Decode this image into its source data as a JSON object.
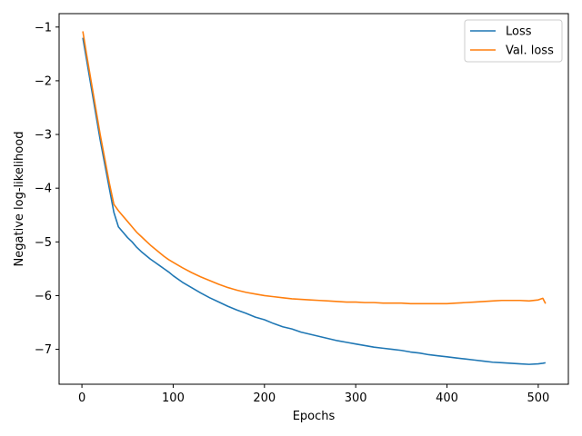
{
  "chart_data": {
    "type": "line",
    "title": "",
    "xlabel": "Epochs",
    "ylabel": "Negative log-likelihood",
    "xlim": [
      -25,
      533
    ],
    "ylim": [
      -7.65,
      -0.75
    ],
    "xticks": [
      0,
      100,
      200,
      300,
      400,
      500
    ],
    "yticks": [
      -1,
      -2,
      -3,
      -4,
      -5,
      -6,
      -7
    ],
    "grid": false,
    "legend": "top-right",
    "series": [
      {
        "name": "Loss",
        "color": "#1f77b4",
        "x": [
          1,
          5,
          10,
          15,
          20,
          25,
          30,
          35,
          40,
          45,
          50,
          55,
          60,
          65,
          70,
          75,
          80,
          85,
          90,
          95,
          100,
          110,
          120,
          130,
          140,
          150,
          160,
          170,
          180,
          190,
          200,
          210,
          220,
          230,
          240,
          250,
          260,
          270,
          280,
          290,
          300,
          310,
          320,
          330,
          340,
          350,
          360,
          370,
          380,
          390,
          400,
          410,
          420,
          430,
          440,
          450,
          460,
          470,
          480,
          490,
          500,
          505,
          508
        ],
        "values": [
          -1.2,
          -1.6,
          -2.1,
          -2.6,
          -3.1,
          -3.55,
          -4.0,
          -4.45,
          -4.72,
          -4.82,
          -4.92,
          -5.0,
          -5.1,
          -5.18,
          -5.25,
          -5.32,
          -5.38,
          -5.44,
          -5.5,
          -5.56,
          -5.63,
          -5.75,
          -5.85,
          -5.95,
          -6.04,
          -6.12,
          -6.2,
          -6.27,
          -6.33,
          -6.4,
          -6.45,
          -6.52,
          -6.58,
          -6.62,
          -6.68,
          -6.72,
          -6.76,
          -6.8,
          -6.84,
          -6.87,
          -6.9,
          -6.93,
          -6.96,
          -6.98,
          -7.0,
          -7.02,
          -7.05,
          -7.07,
          -7.1,
          -7.12,
          -7.14,
          -7.16,
          -7.18,
          -7.2,
          -7.22,
          -7.24,
          -7.25,
          -7.26,
          -7.27,
          -7.28,
          -7.27,
          -7.26,
          -7.25
        ]
      },
      {
        "name": "Val. loss",
        "color": "#ff7f0e",
        "x": [
          1,
          5,
          10,
          15,
          20,
          25,
          30,
          35,
          40,
          45,
          50,
          55,
          60,
          65,
          70,
          75,
          80,
          85,
          90,
          95,
          100,
          110,
          120,
          130,
          140,
          150,
          160,
          170,
          180,
          190,
          200,
          210,
          220,
          230,
          240,
          250,
          260,
          270,
          280,
          290,
          300,
          310,
          320,
          330,
          340,
          350,
          360,
          370,
          380,
          390,
          400,
          410,
          420,
          430,
          440,
          450,
          460,
          470,
          480,
          490,
          500,
          505,
          508
        ],
        "values": [
          -1.08,
          -1.5,
          -2.0,
          -2.5,
          -3.0,
          -3.45,
          -3.9,
          -4.3,
          -4.42,
          -4.52,
          -4.62,
          -4.72,
          -4.82,
          -4.9,
          -4.98,
          -5.06,
          -5.13,
          -5.2,
          -5.27,
          -5.33,
          -5.38,
          -5.48,
          -5.57,
          -5.65,
          -5.72,
          -5.79,
          -5.85,
          -5.9,
          -5.94,
          -5.97,
          -6.0,
          -6.02,
          -6.04,
          -6.06,
          -6.07,
          -6.08,
          -6.09,
          -6.1,
          -6.11,
          -6.12,
          -6.12,
          -6.13,
          -6.13,
          -6.14,
          -6.14,
          -6.14,
          -6.15,
          -6.15,
          -6.15,
          -6.15,
          -6.15,
          -6.14,
          -6.13,
          -6.12,
          -6.11,
          -6.1,
          -6.09,
          -6.09,
          -6.09,
          -6.1,
          -6.08,
          -6.05,
          -6.15
        ]
      }
    ]
  }
}
